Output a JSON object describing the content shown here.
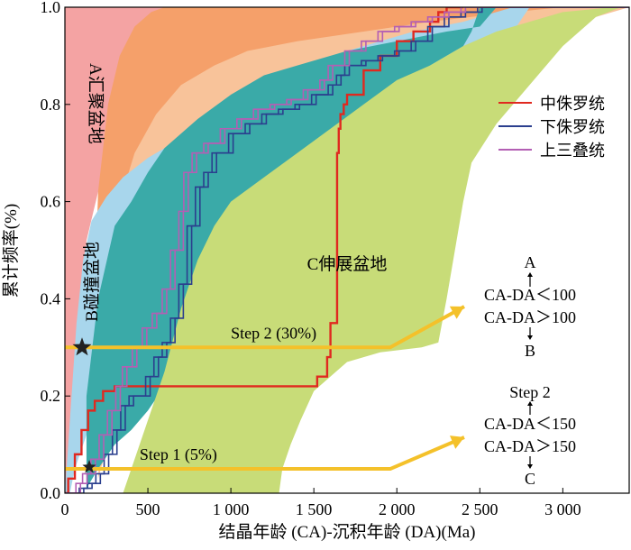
{
  "chart_data": {
    "type": "line",
    "title": "",
    "xlabel": "结晶年龄 (CA)-沉积年龄 (DA)(Ma)",
    "ylabel": "累计频率(%)",
    "xlim": [
      0,
      3400
    ],
    "ylim": [
      0,
      1.0
    ],
    "xticks": [
      0,
      500,
      1000,
      1500,
      2000,
      2500,
      3000
    ],
    "xtick_labels": [
      "0",
      "500",
      "1 000",
      "1 500",
      "2 000",
      "2 500",
      "3 000"
    ],
    "yticks": [
      0,
      0.2,
      0.4,
      0.6,
      0.8,
      1.0
    ],
    "ytick_labels": [
      "0.0",
      "0.2",
      "0.4",
      "0.6",
      "0.8",
      "1.0"
    ],
    "legend_position": "right",
    "regions": [
      {
        "label": "A汇聚盆地",
        "color": "#f4a3a3",
        "lower": [
          [
            0,
            0
          ],
          [
            40,
            0.15
          ],
          [
            80,
            0.35
          ],
          [
            130,
            0.52
          ],
          [
            200,
            0.62
          ],
          [
            300,
            0.7
          ],
          [
            450,
            0.76
          ],
          [
            600,
            0.81
          ],
          [
            800,
            0.86
          ],
          [
            1000,
            0.9
          ],
          [
            1300,
            0.94
          ],
          [
            1700,
            0.97
          ],
          [
            2200,
            0.99
          ],
          [
            2800,
            1.0
          ],
          [
            3400,
            1.0
          ]
        ],
        "upper": [
          [
            0,
            1.0
          ],
          [
            3400,
            1.0
          ]
        ]
      },
      {
        "label": "",
        "color": "#f5a06a",
        "lower": [
          [
            180,
            0.08
          ],
          [
            300,
            0.26
          ],
          [
            400,
            0.38
          ],
          [
            500,
            0.48
          ],
          [
            600,
            0.55
          ],
          [
            800,
            0.63
          ],
          [
            1000,
            0.7
          ],
          [
            1200,
            0.75
          ],
          [
            1500,
            0.8
          ],
          [
            1800,
            0.85
          ],
          [
            2100,
            0.89
          ],
          [
            2400,
            0.92
          ],
          [
            2800,
            0.96
          ],
          [
            3200,
            0.99
          ],
          [
            3400,
            1.0
          ]
        ],
        "upper": [
          [
            180,
            0.4
          ],
          [
            200,
            0.62
          ],
          [
            260,
            0.8
          ],
          [
            330,
            0.9
          ],
          [
            420,
            0.96
          ],
          [
            520,
            0.99
          ],
          [
            600,
            1.0
          ],
          [
            3400,
            1.0
          ]
        ]
      },
      {
        "label": "",
        "color": "#f8c39a",
        "lower": [
          [
            200,
            0.03
          ],
          [
            300,
            0.15
          ],
          [
            450,
            0.3
          ],
          [
            600,
            0.42
          ],
          [
            800,
            0.52
          ],
          [
            1000,
            0.58
          ],
          [
            1200,
            0.63
          ],
          [
            1500,
            0.68
          ],
          [
            1800,
            0.74
          ],
          [
            2100,
            0.8
          ],
          [
            2400,
            0.86
          ],
          [
            2700,
            0.92
          ],
          [
            3000,
            0.96
          ],
          [
            3300,
            0.99
          ],
          [
            3400,
            1.0
          ]
        ],
        "upper": [
          [
            260,
            0.45
          ],
          [
            330,
            0.6
          ],
          [
            420,
            0.7
          ],
          [
            550,
            0.78
          ],
          [
            700,
            0.84
          ],
          [
            900,
            0.88
          ],
          [
            1100,
            0.91
          ],
          [
            1400,
            0.93
          ],
          [
            1800,
            0.95
          ],
          [
            2200,
            0.97
          ],
          [
            2700,
            0.99
          ],
          [
            3000,
            1.0
          ],
          [
            3400,
            1.0
          ]
        ]
      },
      {
        "label": "B碰撞盆地",
        "color": "#a8d6ec",
        "lower": [
          [
            30,
            0.0
          ],
          [
            60,
            0.05
          ],
          [
            130,
            0.12
          ],
          [
            250,
            0.17
          ],
          [
            350,
            0.2
          ],
          [
            450,
            0.24
          ],
          [
            550,
            0.28
          ],
          [
            650,
            0.31
          ],
          [
            800,
            0.36
          ],
          [
            1000,
            0.43
          ],
          [
            1200,
            0.5
          ],
          [
            1450,
            0.57
          ],
          [
            1700,
            0.64
          ],
          [
            1900,
            0.71
          ],
          [
            2100,
            0.77
          ],
          [
            2300,
            0.83
          ],
          [
            2500,
            0.87
          ],
          [
            2600,
            0.9
          ],
          [
            2700,
            0.95
          ],
          [
            2800,
            1.0
          ]
        ],
        "upper": [
          [
            0,
            0.0
          ],
          [
            40,
            0.2
          ],
          [
            70,
            0.35
          ],
          [
            110,
            0.48
          ],
          [
            160,
            0.56
          ],
          [
            250,
            0.61
          ],
          [
            350,
            0.65
          ],
          [
            500,
            0.69
          ],
          [
            700,
            0.73
          ],
          [
            900,
            0.77
          ],
          [
            1100,
            0.81
          ],
          [
            1300,
            0.85
          ],
          [
            1500,
            0.88
          ],
          [
            1700,
            0.91
          ],
          [
            1900,
            0.93
          ],
          [
            2100,
            0.95
          ],
          [
            2400,
            0.97
          ],
          [
            2700,
            1.0
          ]
        ]
      },
      {
        "label": "",
        "color": "#3aaaa8",
        "lower": [
          [
            130,
            0.01
          ],
          [
            200,
            0.05
          ],
          [
            300,
            0.1
          ],
          [
            400,
            0.13
          ],
          [
            500,
            0.17
          ],
          [
            600,
            0.22
          ],
          [
            700,
            0.28
          ],
          [
            800,
            0.33
          ],
          [
            1000,
            0.4
          ],
          [
            1200,
            0.46
          ],
          [
            1400,
            0.51
          ],
          [
            1600,
            0.56
          ],
          [
            1700,
            0.59
          ],
          [
            1800,
            0.63
          ],
          [
            1900,
            0.7
          ],
          [
            1960,
            0.79
          ],
          [
            2100,
            0.86
          ],
          [
            2300,
            0.9
          ],
          [
            2400,
            0.92
          ],
          [
            2450,
            0.95
          ],
          [
            2500,
            1.0
          ]
        ],
        "upper": [
          [
            130,
            0.2
          ],
          [
            200,
            0.4
          ],
          [
            300,
            0.55
          ],
          [
            400,
            0.6
          ],
          [
            500,
            0.66
          ],
          [
            600,
            0.71
          ],
          [
            800,
            0.77
          ],
          [
            1000,
            0.82
          ],
          [
            1200,
            0.86
          ],
          [
            1400,
            0.88
          ],
          [
            1700,
            0.91
          ],
          [
            2000,
            0.93
          ],
          [
            2300,
            0.95
          ],
          [
            2500,
            0.96
          ],
          [
            2600,
            1.0
          ]
        ]
      },
      {
        "label": "C伸展盆地",
        "color": "#c8dc78",
        "lower": [
          [
            1290,
            0.0
          ],
          [
            1310,
            0.05
          ],
          [
            1360,
            0.1
          ],
          [
            1420,
            0.15
          ],
          [
            1500,
            0.21
          ],
          [
            1700,
            0.27
          ],
          [
            1900,
            0.29
          ],
          [
            2150,
            0.3
          ],
          [
            2250,
            0.31
          ],
          [
            2300,
            0.4
          ],
          [
            2350,
            0.5
          ],
          [
            2400,
            0.6
          ],
          [
            2450,
            0.68
          ],
          [
            2600,
            0.76
          ],
          [
            2800,
            0.84
          ],
          [
            3000,
            0.92
          ],
          [
            3200,
            0.98
          ],
          [
            3350,
            1.0
          ]
        ],
        "upper": [
          [
            350,
            0.0
          ],
          [
            400,
            0.05
          ],
          [
            500,
            0.15
          ],
          [
            600,
            0.25
          ],
          [
            700,
            0.38
          ],
          [
            800,
            0.48
          ],
          [
            900,
            0.55
          ],
          [
            1000,
            0.6
          ],
          [
            1200,
            0.65
          ],
          [
            1400,
            0.7
          ],
          [
            1600,
            0.75
          ],
          [
            1800,
            0.8
          ],
          [
            2000,
            0.85
          ],
          [
            2200,
            0.88
          ],
          [
            2400,
            0.92
          ],
          [
            2600,
            0.95
          ],
          [
            2800,
            0.97
          ],
          [
            3000,
            0.99
          ],
          [
            3300,
            1.0
          ]
        ]
      }
    ],
    "series": [
      {
        "name": "中侏罗统",
        "color": "#e0291f",
        "x": [
          0,
          20,
          60,
          100,
          140,
          180,
          230,
          300,
          400,
          600,
          800,
          1000,
          1200,
          1440,
          1520,
          1580,
          1600,
          1640,
          1650,
          1660,
          1680,
          1700,
          1800,
          1900,
          2000,
          2100,
          2200,
          2250,
          2300,
          2400
        ],
        "y": [
          0,
          0.03,
          0.08,
          0.13,
          0.17,
          0.19,
          0.21,
          0.22,
          0.22,
          0.22,
          0.22,
          0.22,
          0.22,
          0.22,
          0.24,
          0.28,
          0.35,
          0.7,
          0.75,
          0.78,
          0.8,
          0.82,
          0.87,
          0.9,
          0.93,
          0.95,
          0.97,
          0.99,
          1.0,
          1.0
        ]
      },
      {
        "name": "下侏罗统",
        "color": "#2b3f8e",
        "x": [
          0,
          100,
          150,
          200,
          250,
          300,
          350,
          400,
          500,
          550,
          600,
          650,
          700,
          750,
          800,
          850,
          900,
          1000,
          1100,
          1200,
          1300,
          1400,
          1500,
          1600,
          1650,
          1700,
          1800,
          1900,
          2000,
          2100,
          2200,
          2300,
          2400,
          2500,
          3400
        ],
        "y": [
          0,
          0.01,
          0.02,
          0.04,
          0.08,
          0.13,
          0.18,
          0.2,
          0.24,
          0.28,
          0.31,
          0.36,
          0.43,
          0.55,
          0.63,
          0.66,
          0.7,
          0.74,
          0.76,
          0.78,
          0.79,
          0.8,
          0.82,
          0.84,
          0.86,
          0.88,
          0.89,
          0.9,
          0.91,
          0.93,
          0.96,
          0.98,
          0.99,
          1.0,
          1.0
        ]
      },
      {
        "name": "上三叠统",
        "color": "#b35fb4",
        "x": [
          0,
          80,
          120,
          170,
          220,
          270,
          320,
          360,
          420,
          480,
          540,
          600,
          650,
          700,
          730,
          780,
          850,
          950,
          1050,
          1150,
          1250,
          1350,
          1450,
          1550,
          1600,
          1700,
          1800,
          1900,
          2000,
          2100,
          2200,
          2300,
          2400,
          2500,
          3400
        ],
        "y": [
          0,
          0.02,
          0.04,
          0.07,
          0.12,
          0.17,
          0.22,
          0.26,
          0.3,
          0.34,
          0.37,
          0.42,
          0.5,
          0.58,
          0.66,
          0.7,
          0.72,
          0.75,
          0.77,
          0.79,
          0.8,
          0.81,
          0.83,
          0.85,
          0.88,
          0.91,
          0.93,
          0.95,
          0.96,
          0.97,
          0.98,
          0.99,
          1.0,
          1.0,
          1.0
        ]
      }
    ],
    "annotations": {
      "step2_label": "Step 2 (30%)",
      "step1_label": "Step 1 (5%)",
      "a_label": "A",
      "a_rule": "CA-DA＜100",
      "b_rule": "CA-DA＞100",
      "b_label": "B",
      "step2_text": "Step 2",
      "c_rule_lt": "CA-DA＜150",
      "c_rule_gt": "CA-DA＞150",
      "c_label": "C",
      "step2_y": 0.3,
      "step1_y": 0.05,
      "star_y_values": [
        0.3,
        0.05
      ],
      "star_color": "#222222",
      "arrow_color": "#f4c12a"
    }
  }
}
